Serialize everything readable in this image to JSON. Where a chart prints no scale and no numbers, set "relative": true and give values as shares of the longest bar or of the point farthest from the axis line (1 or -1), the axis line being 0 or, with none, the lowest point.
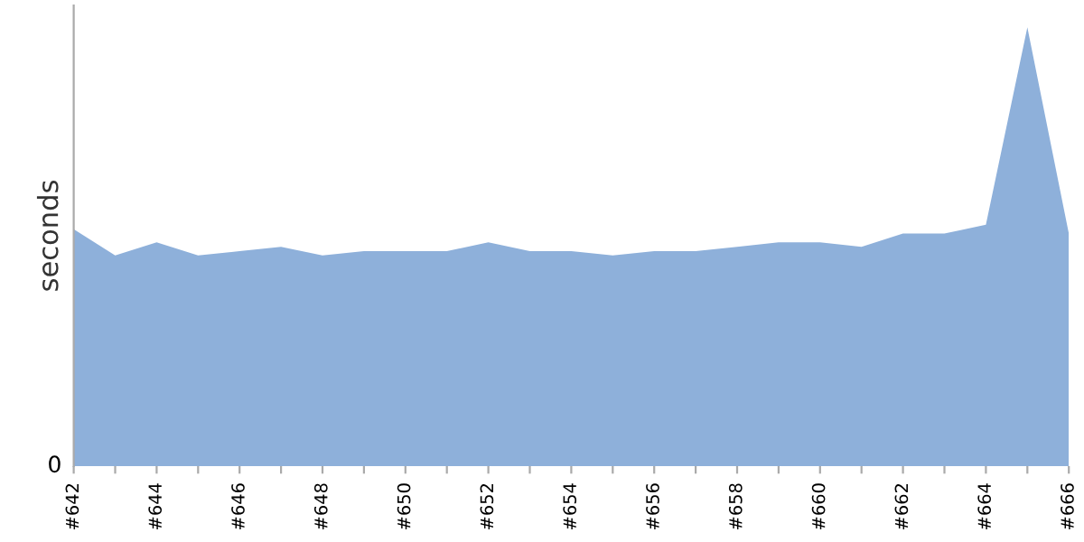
{
  "chart_data": {
    "type": "area",
    "ylabel": "seconds",
    "relative": true,
    "annotations": [
      "0"
    ],
    "categories": [
      "#642",
      null,
      "#644",
      null,
      "#646",
      null,
      "#648",
      null,
      "#650",
      null,
      "#652",
      null,
      "#654",
      null,
      "#656",
      null,
      "#658",
      null,
      "#660",
      null,
      "#662",
      null,
      "#664",
      null,
      "#666"
    ],
    "series": [
      {
        "color": "#8eb0da",
        "values": [
          0.54,
          0.48,
          0.51,
          0.48,
          0.49,
          0.5,
          0.48,
          0.49,
          0.49,
          0.49,
          0.51,
          0.49,
          0.49,
          0.48,
          0.49,
          0.49,
          0.5,
          0.51,
          0.51,
          0.5,
          0.53,
          0.53,
          0.55,
          1,
          0.53
        ]
      }
    ],
    "legend": false
  }
}
